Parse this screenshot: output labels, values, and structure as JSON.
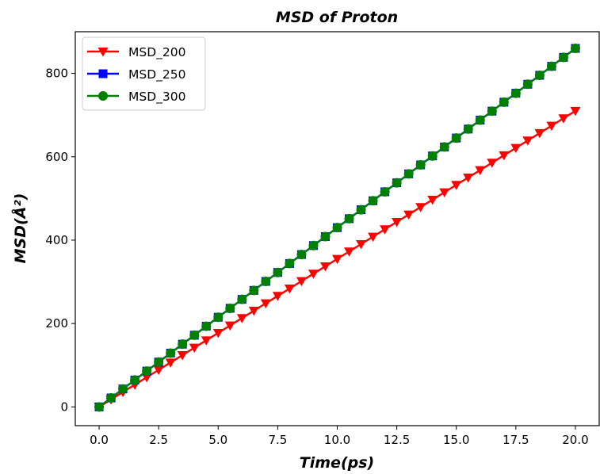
{
  "chart_data": {
    "type": "line",
    "title": "MSD of Proton",
    "xlabel": "Time(ps)",
    "ylabel": "MSD(Å²)",
    "xlim": [
      -1.0,
      21.0
    ],
    "ylim": [
      -45,
      900
    ],
    "xticks": [
      0.0,
      2.5,
      5.0,
      7.5,
      10.0,
      12.5,
      15.0,
      17.5,
      20.0
    ],
    "xtick_labels": [
      "0.0",
      "2.5",
      "5.0",
      "7.5",
      "10.0",
      "12.5",
      "15.0",
      "17.5",
      "20.0"
    ],
    "yticks": [
      0,
      200,
      400,
      600,
      800
    ],
    "ytick_labels": [
      "0",
      "200",
      "400",
      "600",
      "800"
    ],
    "grid": false,
    "legend_position": "upper-left",
    "x": {
      "start": 0,
      "stop": 20,
      "step": 0.5
    },
    "series": [
      {
        "name": "MSD_200",
        "color": "#ff0000",
        "marker": "triangle-down",
        "slope": 35.5
      },
      {
        "name": "MSD_250",
        "color": "#0000ff",
        "marker": "square",
        "slope": 43.0
      },
      {
        "name": "MSD_300",
        "color": "#008000",
        "marker": "circle",
        "slope": 43.0
      }
    ]
  }
}
